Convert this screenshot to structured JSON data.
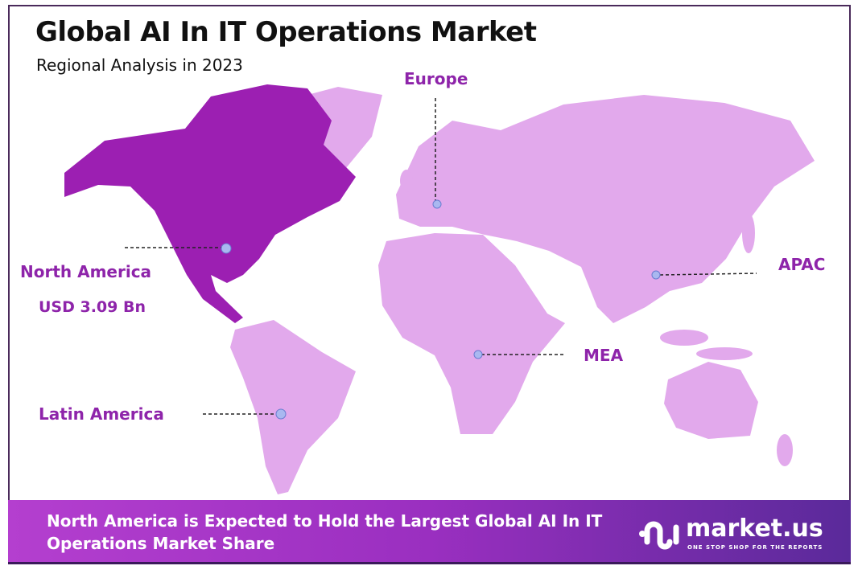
{
  "header": {
    "title": "Global AI In IT Operations Market",
    "subtitle": "Regional Analysis in 2023"
  },
  "regions": [
    {
      "label": "Europe"
    },
    {
      "label": "North America",
      "value": "USD 3.09 Bn",
      "highlighted": true
    },
    {
      "label": "APAC"
    },
    {
      "label": "MEA"
    },
    {
      "label": "Latin America"
    }
  ],
  "colors": {
    "highlight": "#9c1fb2",
    "land": "#e2a9ec",
    "label": "#8e24aa",
    "marker": "#a9b8f0"
  },
  "footer": {
    "text": "North America is Expected to Hold the Largest Global AI In IT Operations Market Share",
    "logo_name": "market.us",
    "logo_tagline": "ONE STOP SHOP FOR THE REPORTS"
  }
}
